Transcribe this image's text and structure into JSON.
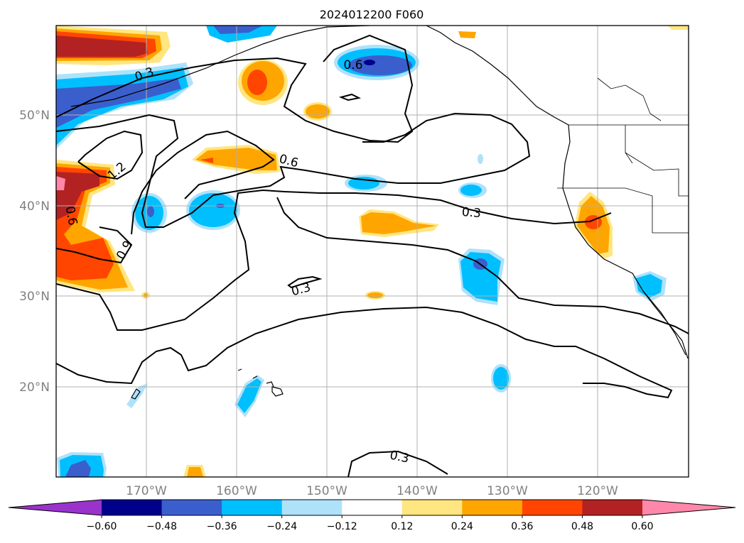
{
  "title": "2024012200 F060",
  "lat_labels": [
    "50°N",
    "40°N",
    "30°N",
    "20°N"
  ],
  "lon_labels": [
    "170°W",
    "160°W",
    "150°W",
    "140°W",
    "130°W",
    "120°W"
  ],
  "contour_labels": [
    "0.3",
    "0.6",
    "1.2",
    "0.6",
    "0.9",
    "0.6",
    "0.3",
    "0.3",
    "0.3"
  ],
  "colorbar": {
    "ticks": [
      "−0.60",
      "−0.48",
      "−0.36",
      "−0.24",
      "−0.12",
      "0.12",
      "0.24",
      "0.36",
      "0.48",
      "0.60"
    ],
    "colors": [
      "#9933cc",
      "#00008b",
      "#3a5fcd",
      "#00bfff",
      "#aee2fa",
      "#ffffff",
      "#ffe680",
      "#ffa500",
      "#ff4500",
      "#b22222",
      "#ff88aa"
    ]
  },
  "palette": {
    "deep_red": "#b22222",
    "red_orange": "#ff4500",
    "orange": "#ffa500",
    "light_yellow": "#ffe680",
    "pink": "#ff88aa",
    "light_blue": "#aee2fa",
    "sky_blue": "#00bfff",
    "royal_blue": "#3a5fcd",
    "navy": "#00008b",
    "gridline": "#b0b0b0",
    "axis_text": "#808080"
  }
}
